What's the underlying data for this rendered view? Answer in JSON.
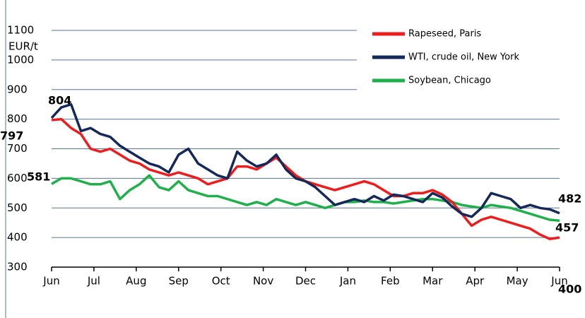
{
  "chart_data": {
    "type": "line",
    "y_label": "EUR/t",
    "x_labels": [
      "Jun",
      "Jul",
      "Aug",
      "Sep",
      "Oct",
      "Nov",
      "Dec",
      "Jan",
      "Feb",
      "Mar",
      "Apr",
      "May",
      "Jun"
    ],
    "ylim": [
      300,
      1100
    ],
    "yticks": [
      300,
      400,
      500,
      600,
      700,
      800,
      900,
      1000,
      1100
    ],
    "grid": true,
    "legend": "top-right",
    "series": [
      {
        "name": "Rapeseed, Paris",
        "color": "#ee1c1c",
        "values": [
          797,
          800,
          770,
          750,
          700,
          690,
          700,
          680,
          660,
          650,
          630,
          620,
          610,
          620,
          610,
          600,
          580,
          590,
          600,
          640,
          640,
          630,
          650,
          670,
          640,
          610,
          590,
          580,
          570,
          560,
          570,
          580,
          590,
          580,
          560,
          540,
          540,
          550,
          550,
          560,
          545,
          520,
          480,
          440,
          460,
          470,
          460,
          450,
          440,
          430,
          410,
          395,
          400
        ]
      },
      {
        "name": "WTI, crude oil, New York",
        "color": "#14285a",
        "values": [
          804,
          840,
          850,
          760,
          770,
          750,
          740,
          710,
          690,
          670,
          650,
          640,
          620,
          680,
          700,
          650,
          630,
          610,
          600,
          690,
          660,
          640,
          650,
          680,
          630,
          600,
          590,
          570,
          540,
          510,
          520,
          530,
          520,
          540,
          525,
          545,
          540,
          530,
          520,
          550,
          535,
          505,
          480,
          470,
          500,
          550,
          540,
          530,
          500,
          510,
          500,
          495,
          482
        ]
      },
      {
        "name": "Soybean, Chicago",
        "color": "#1fb04b",
        "values": [
          581,
          600,
          600,
          590,
          580,
          580,
          590,
          530,
          560,
          580,
          610,
          570,
          560,
          590,
          560,
          550,
          540,
          540,
          530,
          520,
          510,
          520,
          510,
          530,
          520,
          510,
          520,
          510,
          500,
          510,
          520,
          520,
          525,
          520,
          520,
          515,
          520,
          525,
          530,
          530,
          525,
          520,
          510,
          505,
          500,
          510,
          505,
          500,
          490,
          480,
          470,
          460,
          457
        ]
      }
    ]
  }
}
